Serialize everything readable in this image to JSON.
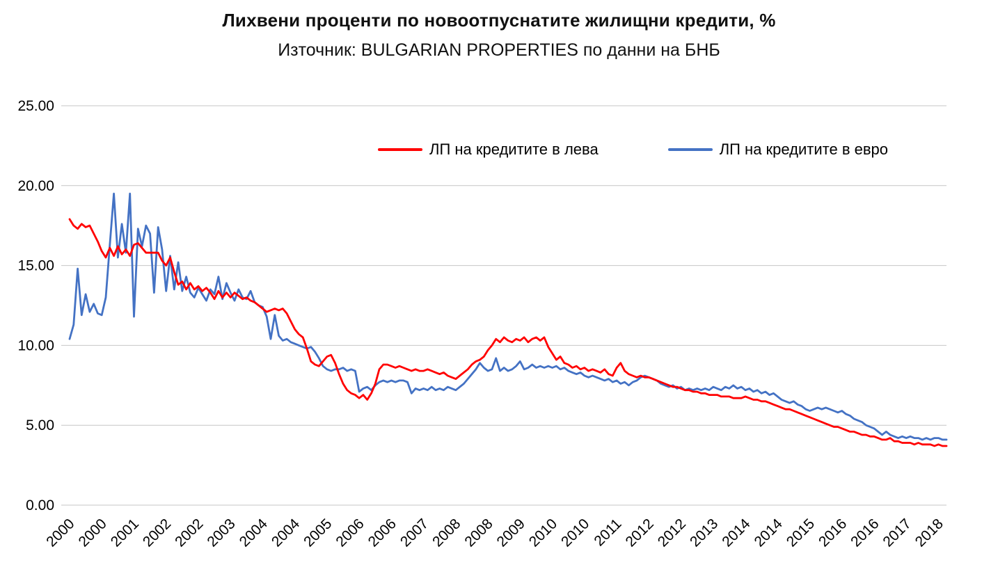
{
  "chart_data": {
    "type": "line",
    "title": "Лихвени проценти по новоотпуснатите жилищни кредити, %",
    "subtitle": "Източник: BULGARIAN PROPERTIES по данни на БНБ",
    "xlabel": "",
    "ylabel": "",
    "ylim": [
      0,
      25
    ],
    "y_ticks": [
      25,
      20,
      15,
      10,
      5,
      0
    ],
    "y_tick_labels": [
      "25.00",
      "20.00",
      "15.00",
      "10.00",
      "5.00",
      "0.00"
    ],
    "grid": true,
    "legend_position": "top-inside",
    "x_tick_every": 8,
    "x_tick_labels": [
      "2000",
      "2000",
      "2001",
      "2002",
      "2002",
      "2003",
      "2004",
      "2004",
      "2005",
      "2006",
      "2006",
      "2007",
      "2008",
      "2008",
      "2009",
      "2010",
      "2010",
      "2011",
      "2012",
      "2012",
      "2013",
      "2014",
      "2014",
      "2015",
      "2016",
      "2016",
      "2017",
      "2018"
    ],
    "series": [
      {
        "name": "ЛП на кредитите в лева",
        "color": "#FF0000",
        "values": [
          17.9,
          17.5,
          17.3,
          17.6,
          17.4,
          17.5,
          17.0,
          16.5,
          15.9,
          15.5,
          16.1,
          15.6,
          16.2,
          15.7,
          16.0,
          15.6,
          16.3,
          16.4,
          16.1,
          15.8,
          15.8,
          15.8,
          15.8,
          15.3,
          15.0,
          15.5,
          14.6,
          13.8,
          14.0,
          13.5,
          13.9,
          13.5,
          13.7,
          13.4,
          13.6,
          13.3,
          12.9,
          13.4,
          13.0,
          13.3,
          13.0,
          13.3,
          13.1,
          12.9,
          13.0,
          12.8,
          12.7,
          12.5,
          12.3,
          12.1,
          12.2,
          12.3,
          12.2,
          12.3,
          12.0,
          11.5,
          11.0,
          10.7,
          10.5,
          9.8,
          9.0,
          8.8,
          8.7,
          9.0,
          9.3,
          9.4,
          8.9,
          8.2,
          7.6,
          7.2,
          7.0,
          6.9,
          6.7,
          6.9,
          6.6,
          7.0,
          7.6,
          8.5,
          8.8,
          8.8,
          8.7,
          8.6,
          8.7,
          8.6,
          8.5,
          8.4,
          8.5,
          8.4,
          8.4,
          8.5,
          8.4,
          8.3,
          8.2,
          8.3,
          8.1,
          8.0,
          7.9,
          8.1,
          8.3,
          8.5,
          8.8,
          9.0,
          9.1,
          9.3,
          9.7,
          10.0,
          10.4,
          10.2,
          10.5,
          10.3,
          10.2,
          10.4,
          10.3,
          10.5,
          10.2,
          10.4,
          10.5,
          10.3,
          10.5,
          9.9,
          9.5,
          9.1,
          9.3,
          8.9,
          8.8,
          8.6,
          8.7,
          8.5,
          8.6,
          8.4,
          8.5,
          8.4,
          8.3,
          8.5,
          8.2,
          8.1,
          8.6,
          8.9,
          8.4,
          8.2,
          8.1,
          8.0,
          8.1,
          8.0,
          8.0,
          7.9,
          7.8,
          7.7,
          7.6,
          7.5,
          7.4,
          7.4,
          7.3,
          7.2,
          7.2,
          7.1,
          7.1,
          7.0,
          7.0,
          6.9,
          6.9,
          6.9,
          6.8,
          6.8,
          6.8,
          6.7,
          6.7,
          6.7,
          6.8,
          6.7,
          6.6,
          6.6,
          6.5,
          6.5,
          6.4,
          6.3,
          6.2,
          6.1,
          6.0,
          6.0,
          5.9,
          5.8,
          5.7,
          5.6,
          5.5,
          5.4,
          5.3,
          5.2,
          5.1,
          5.0,
          4.9,
          4.9,
          4.8,
          4.7,
          4.6,
          4.6,
          4.5,
          4.4,
          4.4,
          4.3,
          4.3,
          4.2,
          4.1,
          4.1,
          4.2,
          4.0,
          4.0,
          3.9,
          3.9,
          3.9,
          3.8,
          3.9,
          3.8,
          3.8,
          3.8,
          3.7,
          3.8,
          3.7,
          3.7
        ]
      },
      {
        "name": "ЛП на кредитите в евро",
        "color": "#4472C4",
        "values": [
          10.4,
          11.3,
          14.8,
          11.9,
          13.2,
          12.1,
          12.6,
          12.0,
          11.9,
          13.0,
          16.3,
          19.5,
          15.5,
          17.6,
          15.8,
          19.5,
          11.8,
          17.3,
          16.2,
          17.5,
          17.0,
          13.3,
          17.4,
          16.0,
          13.4,
          15.6,
          13.5,
          15.2,
          13.4,
          14.3,
          13.3,
          13.0,
          13.6,
          13.2,
          12.8,
          13.5,
          13.2,
          14.3,
          12.9,
          13.9,
          13.3,
          12.8,
          13.5,
          13.0,
          12.9,
          13.4,
          12.7,
          12.5,
          12.4,
          11.8,
          10.4,
          11.9,
          10.6,
          10.3,
          10.4,
          10.2,
          10.1,
          10.0,
          9.9,
          9.8,
          9.9,
          9.6,
          9.2,
          8.7,
          8.5,
          8.4,
          8.5,
          8.5,
          8.6,
          8.4,
          8.5,
          8.4,
          7.1,
          7.3,
          7.4,
          7.2,
          7.5,
          7.7,
          7.8,
          7.7,
          7.8,
          7.7,
          7.8,
          7.8,
          7.7,
          7.0,
          7.3,
          7.2,
          7.3,
          7.2,
          7.4,
          7.2,
          7.3,
          7.2,
          7.4,
          7.3,
          7.2,
          7.4,
          7.6,
          7.9,
          8.2,
          8.5,
          8.9,
          8.6,
          8.4,
          8.5,
          9.2,
          8.4,
          8.6,
          8.4,
          8.5,
          8.7,
          9.0,
          8.5,
          8.6,
          8.8,
          8.6,
          8.7,
          8.6,
          8.7,
          8.6,
          8.7,
          8.5,
          8.6,
          8.4,
          8.3,
          8.2,
          8.3,
          8.1,
          8.0,
          8.1,
          8.0,
          7.9,
          7.8,
          7.9,
          7.7,
          7.8,
          7.6,
          7.7,
          7.5,
          7.7,
          7.8,
          8.0,
          8.1,
          8.0,
          7.9,
          7.8,
          7.6,
          7.5,
          7.4,
          7.5,
          7.3,
          7.4,
          7.2,
          7.3,
          7.2,
          7.3,
          7.2,
          7.3,
          7.2,
          7.4,
          7.3,
          7.2,
          7.4,
          7.3,
          7.5,
          7.3,
          7.4,
          7.2,
          7.3,
          7.1,
          7.2,
          7.0,
          7.1,
          6.9,
          7.0,
          6.8,
          6.6,
          6.5,
          6.4,
          6.5,
          6.3,
          6.2,
          6.0,
          5.9,
          6.0,
          6.1,
          6.0,
          6.1,
          6.0,
          5.9,
          5.8,
          5.9,
          5.7,
          5.6,
          5.4,
          5.3,
          5.2,
          5.0,
          4.9,
          4.8,
          4.6,
          4.4,
          4.6,
          4.4,
          4.3,
          4.2,
          4.3,
          4.2,
          4.3,
          4.2,
          4.2,
          4.1,
          4.2,
          4.1,
          4.2,
          4.2,
          4.1,
          4.1
        ]
      }
    ]
  }
}
